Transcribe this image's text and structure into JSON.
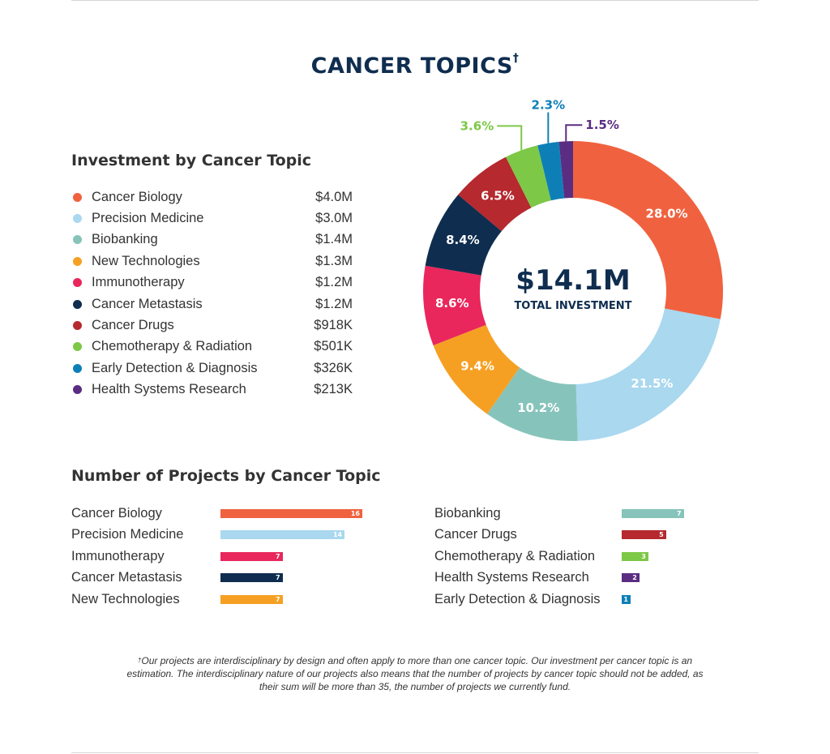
{
  "title": "CANCER TOPICS",
  "title_mark": "†",
  "investment_section": {
    "heading": "Investment by Cancer Topic",
    "items": [
      {
        "name": "Cancer Biology",
        "amount": "$4.0M",
        "color": "#f0623f"
      },
      {
        "name": "Precision Medicine",
        "amount": "$3.0M",
        "color": "#a9d8ef"
      },
      {
        "name": "Biobanking",
        "amount": "$1.4M",
        "color": "#86c4bb"
      },
      {
        "name": "New Technologies",
        "amount": "$1.3M",
        "color": "#f6a023"
      },
      {
        "name": "Immunotherapy",
        "amount": "$1.2M",
        "color": "#e9275c"
      },
      {
        "name": "Cancer Metastasis",
        "amount": "$1.2M",
        "color": "#0f2d4f"
      },
      {
        "name": "Cancer Drugs",
        "amount": "$918K",
        "color": "#b5292f"
      },
      {
        "name": "Chemotherapy & Radiation",
        "amount": "$501K",
        "color": "#7dc847"
      },
      {
        "name": "Early Detection & Diagnosis",
        "amount": "$326K",
        "color": "#0e7fb6"
      },
      {
        "name": "Health Systems Research",
        "amount": "$213K",
        "color": "#5a2d82"
      }
    ]
  },
  "chart_data": [
    {
      "type": "pie",
      "center_value": "$14.1M",
      "center_label": "TOTAL INVESTMENT",
      "slices": [
        {
          "name": "Cancer Biology",
          "value": 28.0,
          "label": "28.0%",
          "color": "#f0623f"
        },
        {
          "name": "Precision Medicine",
          "value": 21.5,
          "label": "21.5%",
          "color": "#a9d8ef"
        },
        {
          "name": "Biobanking",
          "value": 10.2,
          "label": "10.2%",
          "color": "#86c4bb"
        },
        {
          "name": "New Technologies",
          "value": 9.4,
          "label": "9.4%",
          "color": "#f6a023"
        },
        {
          "name": "Immunotherapy",
          "value": 8.6,
          "label": "8.6%",
          "color": "#e9275c"
        },
        {
          "name": "Cancer Metastasis",
          "value": 8.4,
          "label": "8.4%",
          "color": "#0f2d4f"
        },
        {
          "name": "Cancer Drugs",
          "value": 6.5,
          "label": "6.5%",
          "color": "#b5292f"
        },
        {
          "name": "Chemotherapy & Radiation",
          "value": 3.6,
          "label": "3.6%",
          "color": "#7dc847"
        },
        {
          "name": "Early Detection & Diagnosis",
          "value": 2.3,
          "label": "2.3%",
          "color": "#0e7fb6"
        },
        {
          "name": "Health Systems Research",
          "value": 1.5,
          "label": "1.5%",
          "color": "#5a2d82"
        }
      ]
    },
    {
      "type": "bar",
      "title": "Number of Projects by Cancer Topic",
      "xlim": [
        0,
        16
      ],
      "left_column": [
        {
          "name": "Cancer Biology",
          "value": 16,
          "color": "#f0623f"
        },
        {
          "name": "Precision Medicine",
          "value": 14,
          "color": "#a9d8ef"
        },
        {
          "name": "Immunotherapy",
          "value": 7,
          "color": "#e9275c"
        },
        {
          "name": "Cancer Metastasis",
          "value": 7,
          "color": "#0f2d4f"
        },
        {
          "name": "New Technologies",
          "value": 7,
          "color": "#f6a023"
        }
      ],
      "right_column": [
        {
          "name": "Biobanking",
          "value": 7,
          "color": "#86c4bb"
        },
        {
          "name": "Cancer Drugs",
          "value": 5,
          "color": "#b5292f"
        },
        {
          "name": "Chemotherapy & Radiation",
          "value": 3,
          "color": "#7dc847"
        },
        {
          "name": "Health Systems Research",
          "value": 2,
          "color": "#5a2d82"
        },
        {
          "name": "Early Detection & Diagnosis",
          "value": 1,
          "color": "#0e7fb6"
        }
      ]
    }
  ],
  "footnote": {
    "mark": "†",
    "text": "Our projects are interdisciplinary by design and often apply to more than one cancer topic. Our investment per cancer topic is an estimation. The interdisciplinary nature of our projects also means that the number of projects by cancer topic should not be added, as their sum will be more than 35, the number of projects we currently fund."
  }
}
